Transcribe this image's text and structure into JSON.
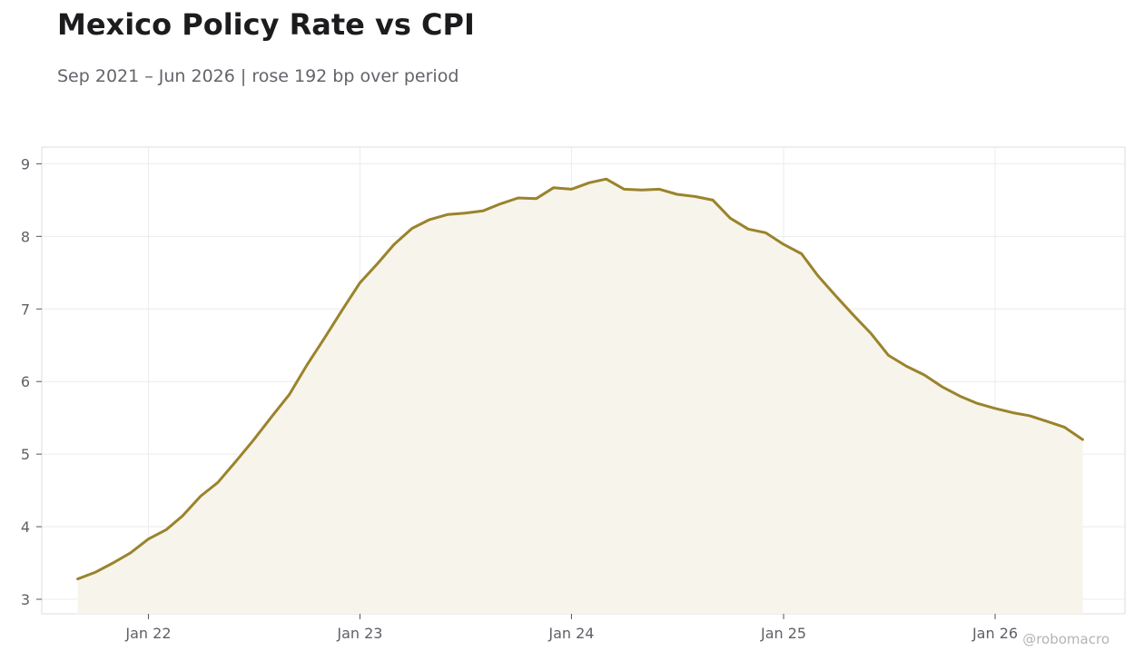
{
  "title": "Mexico Policy Rate vs CPI",
  "subtitle": "Sep 2021 – Jun 2026 | rose 192 bp over period",
  "watermark": "@robomacro",
  "colors": {
    "line": "#9a832c",
    "fill": "#f7f4ec",
    "grid": "#ececec",
    "frame": "#dddddd"
  },
  "chart_data": {
    "type": "area",
    "title": "Mexico Policy Rate vs CPI",
    "subtitle": "Sep 2021 – Jun 2026 | rose 192 bp over period",
    "xlabel": "",
    "ylabel": "",
    "xlim": [
      "2021-07-01",
      "2026-08-13"
    ],
    "ylim": [
      2.8,
      9.23
    ],
    "grid": true,
    "legend": "none",
    "x_ticks": [
      {
        "date": "2022-01-01",
        "label": "Jan 22"
      },
      {
        "date": "2023-01-01",
        "label": "Jan 23"
      },
      {
        "date": "2024-01-01",
        "label": "Jan 24"
      },
      {
        "date": "2025-01-01",
        "label": "Jan 25"
      },
      {
        "date": "2026-01-01",
        "label": "Jan 26"
      }
    ],
    "y_ticks": [
      3,
      4,
      5,
      6,
      7,
      8,
      9
    ],
    "series": [
      {
        "x": [
          "2021-09-01",
          "2021-10-01",
          "2021-11-01",
          "2021-12-01",
          "2022-01-01",
          "2022-02-01",
          "2022-03-01",
          "2022-04-01",
          "2022-05-01",
          "2022-06-01",
          "2022-07-01",
          "2022-08-01",
          "2022-09-01",
          "2022-10-01",
          "2022-11-01",
          "2022-12-01",
          "2023-01-01",
          "2023-02-01",
          "2023-03-01",
          "2023-04-01",
          "2023-05-01",
          "2023-06-01",
          "2023-07-01",
          "2023-08-01",
          "2023-09-01",
          "2023-10-01",
          "2023-11-01",
          "2023-12-01",
          "2024-01-01",
          "2024-02-01",
          "2024-03-01",
          "2024-04-01",
          "2024-05-01",
          "2024-06-01",
          "2024-07-01",
          "2024-08-01",
          "2024-09-01",
          "2024-10-01",
          "2024-11-01",
          "2024-12-01",
          "2025-01-01",
          "2025-02-01",
          "2025-03-01",
          "2025-04-01",
          "2025-05-01",
          "2025-06-01",
          "2025-07-01",
          "2025-08-01",
          "2025-09-01",
          "2025-10-01",
          "2025-11-01",
          "2025-12-01",
          "2026-01-01",
          "2026-02-01",
          "2026-03-01",
          "2026-04-01",
          "2026-05-01",
          "2026-06-01"
        ],
        "values": [
          3.28,
          3.37,
          3.5,
          3.64,
          3.83,
          3.96,
          4.15,
          4.42,
          4.61,
          4.9,
          5.19,
          5.51,
          5.82,
          6.22,
          6.6,
          6.98,
          7.36,
          7.63,
          7.89,
          8.11,
          8.23,
          8.3,
          8.32,
          8.35,
          8.45,
          8.53,
          8.52,
          8.67,
          8.65,
          8.74,
          8.79,
          8.65,
          8.64,
          8.65,
          8.58,
          8.55,
          8.5,
          8.25,
          8.1,
          8.05,
          7.89,
          7.76,
          7.46,
          7.18,
          6.92,
          6.66,
          6.36,
          6.21,
          6.09,
          5.93,
          5.8,
          5.7,
          5.63,
          5.57,
          5.53,
          5.45,
          5.37,
          5.2
        ]
      }
    ]
  }
}
